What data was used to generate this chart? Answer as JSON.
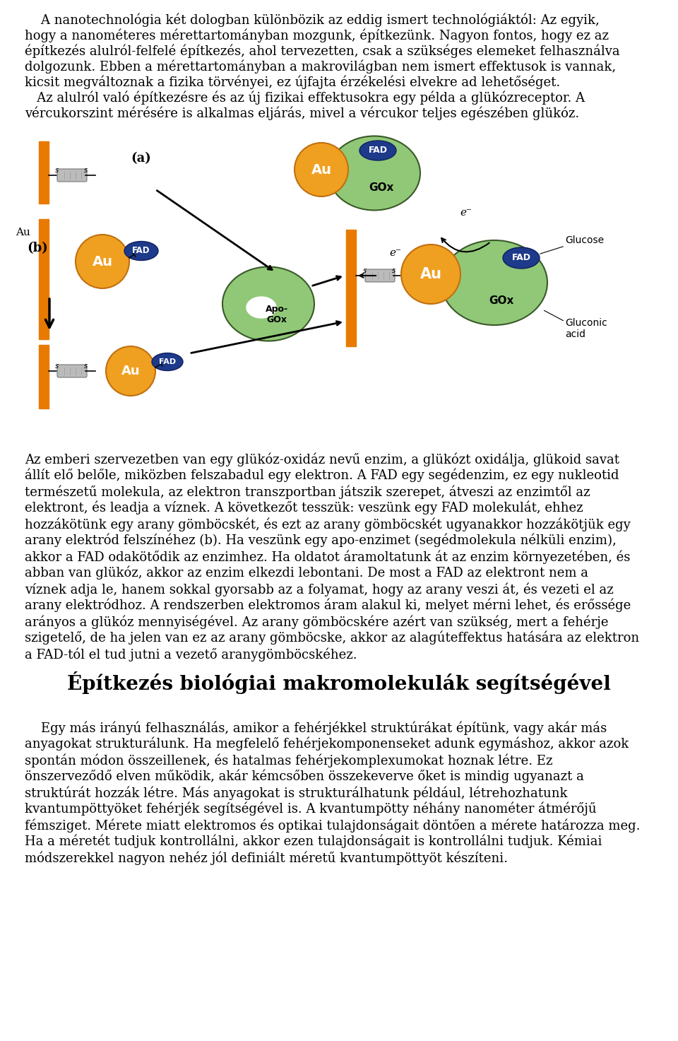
{
  "background_color": "#ffffff",
  "text_color": "#000000",
  "page_width": 9.6,
  "page_height": 14.73,
  "font_size_body": 13.0,
  "font_size_title": 20,
  "bar_color": "#E87A00",
  "au_color": "#F0A020",
  "au_edge": "#C07010",
  "fad_color": "#1E3A8A",
  "fad_edge": "#102060",
  "gox_color": "#90C878",
  "gox_edge": "#3A5A28",
  "p1_lines": [
    "    A nanotechnológia két dologban különbözik az eddig ismert technológiáktól: Az egyik,",
    "hogy a nanométeres mérettartományban mozgunk, építkezünk. Nagyon fontos, hogy ez az",
    "építkezés alulról-felfelé építkezés, ahol tervezetten, csak a szükséges elemeket felhasználva",
    "dolgozunk. Ebben a mérettartományban a makrovilágban nem ismert effektusok is vannak,",
    "kicsit megváltoznak a fizika törvényei, ez újfajta érzékelési elvekre ad lehetőséget.",
    "   Az alulról való építkezésre és az új fizikai effektusokra egy példa a glükózreceptor. A",
    "vércukorszint mérésére is alkalmas eljárás, mivel a vércukor teljes egészében glükóz."
  ],
  "p2_lines": [
    "Az emberi szervezetben van egy glükóz-oxidáz nevű enzim, a glükózt oxidálja, glükoid savat",
    "állít elő belőle, miközben felszabadul egy elektron. A FAD egy segédenzim, ez egy nukleotid",
    "természetű molekula, az elektron transzportban játszik szerepet, átveszi az enzimtől az",
    "elektront, és leadja a víznek. A következőt tesszük: veszünk egy FAD molekulát, ehhez",
    "hozzákötünk egy arany gömböcskét, és ezt az arany gömböcskét ugyanakkor hozzákötjük egy",
    "arany elektród felszínéhez (b). Ha veszünk egy apo-enzimet (segédmolekula nélküli enzim),",
    "akkor a FAD odakötődik az enzimhez. Ha oldatot áramoltatunk át az enzim környezetében, és",
    "abban van glükóz, akkor az enzim elkezdi lebontani. De most a FAD az elektront nem a",
    "víznek adja le, hanem sokkal gyorsabb az a folyamat, hogy az arany veszi át, és vezeti el az",
    "arany elektródhoz. A rendszerben elektromos áram alakul ki, melyet mérni lehet, és erőssége",
    "arányos a glükóz mennyiségével. Az arany gömböcskére azért van szükség, mert a fehérje",
    "szigetelő, de ha jelen van ez az arany gömböcske, akkor az alagúteffektus hatására az elektron",
    "a FAD-tól el tud jutni a vezető aranygömböcskéhez."
  ],
  "section_title": "Építkezés biológiai makromolekulák segítségével",
  "p3_lines": [
    "    Egy más irányú felhasználás, amikor a fehérjékkel struktúrákat építünk, vagy akár más",
    "anyagokat strukturálunk. Ha megfelelő fehérjekomponenseket adunk egymáshoz, akkor azok",
    "spontán módon összeillenek, és hatalmas fehérjekomplexumokat hoznak létre. Ez",
    "önszerveződő elven működik, akár kémcsőben összekeverve őket is mindig ugyanazt a",
    "struktúrát hozzák létre. Más anyagokat is strukturálhatunk például, létrehozhatunk",
    "kvantumpöttyöket fehérjék segítségével is. A kvantumpötty néhány nanométer átmérőjű",
    "fémsziget. Mérete miatt elektromos és optikai tulajdonságait döntően a mérete határozza meg.",
    "Ha a méretét tudjuk kontrollálni, akkor ezen tulajdonságait is kontrollálni tudjuk. Kémiai",
    "módszerekkel nagyon nehéz jól definiált méretű kvantumpöttyöt készíteni."
  ]
}
